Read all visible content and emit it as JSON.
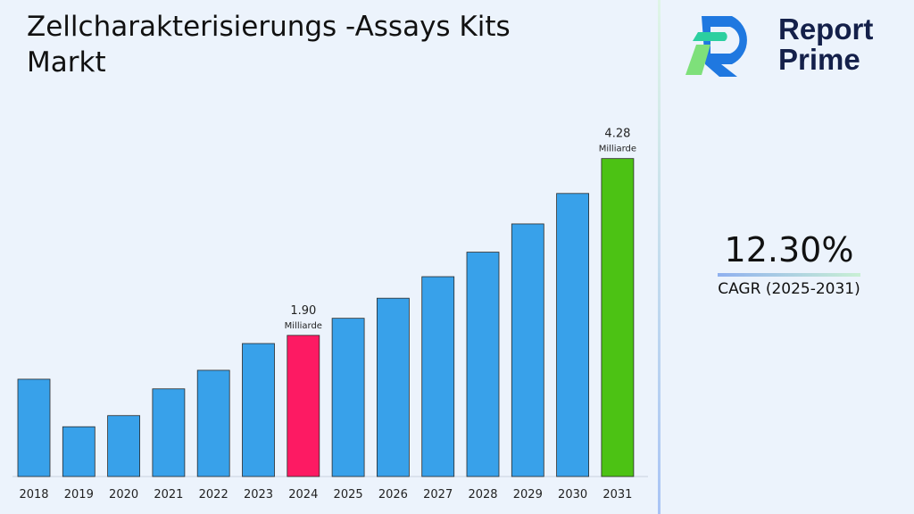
{
  "title": "Zellcharakterisierungs -Assays Kits Markt",
  "logo": {
    "line1": "Report",
    "line2": "Prime"
  },
  "cagr": {
    "value": "12.30%",
    "label": "CAGR (2025-2031)"
  },
  "colors": {
    "default": "#38a1ea",
    "highlight": "#fd1a63",
    "final": "#4cc214"
  },
  "chart_data": {
    "type": "bar",
    "categories": [
      "2018",
      "2019",
      "2020",
      "2021",
      "2022",
      "2023",
      "2024",
      "2025",
      "2026",
      "2027",
      "2028",
      "2029",
      "2030",
      "2031"
    ],
    "values": [
      1.31,
      0.67,
      0.82,
      1.18,
      1.43,
      1.79,
      1.9,
      2.13,
      2.4,
      2.69,
      3.02,
      3.4,
      3.81,
      4.28
    ],
    "annotations": [
      {
        "category": "2024",
        "value": "1.90",
        "unit": "Milliarde"
      },
      {
        "category": "2031",
        "value": "4.28",
        "unit": "Milliarde"
      }
    ],
    "ylim": [
      0,
      4.3
    ],
    "grid": false,
    "legend": "none"
  }
}
